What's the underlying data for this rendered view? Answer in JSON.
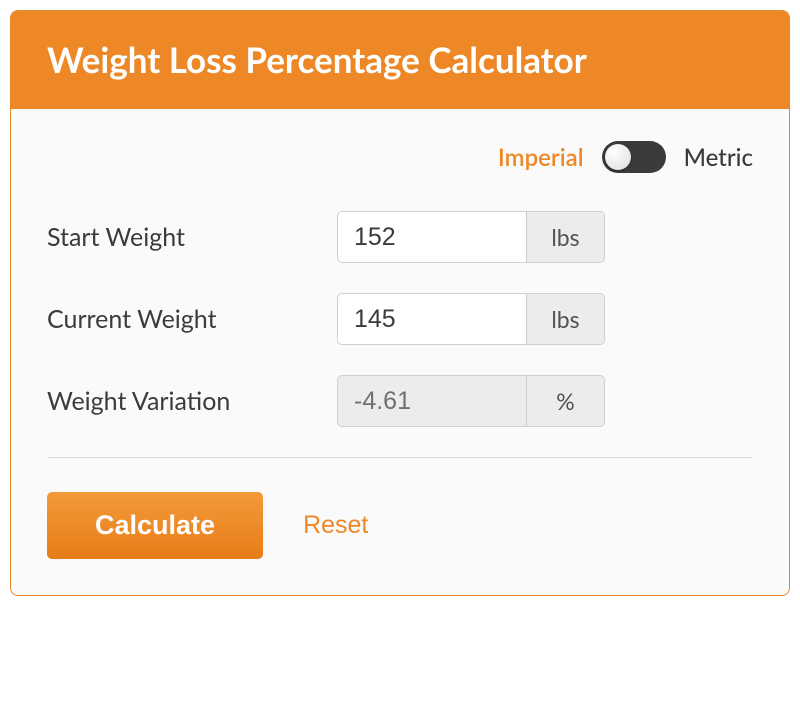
{
  "header": {
    "title": "Weight Loss Percentage Calculator"
  },
  "units": {
    "left_label": "Imperial",
    "right_label": "Metric",
    "active": "Imperial"
  },
  "fields": {
    "start": {
      "label": "Start Weight",
      "value": "152",
      "unit": "lbs"
    },
    "current": {
      "label": "Current Weight",
      "value": "145",
      "unit": "lbs"
    },
    "variation": {
      "label": "Weight Variation",
      "value": "-4.61",
      "unit": "%"
    }
  },
  "actions": {
    "calculate": "Calculate",
    "reset": "Reset"
  },
  "colors": {
    "accent": "#ee8827",
    "header_bg": "#ee8827",
    "body_bg": "#fafafa",
    "text": "#3b3b3b",
    "muted": "#707070",
    "border": "#cfcfcf",
    "input_addon_bg": "#ececec",
    "toggle_bg": "#3b3b3b",
    "toggle_knob": "#f2f2f2",
    "divider": "#dddddd"
  }
}
